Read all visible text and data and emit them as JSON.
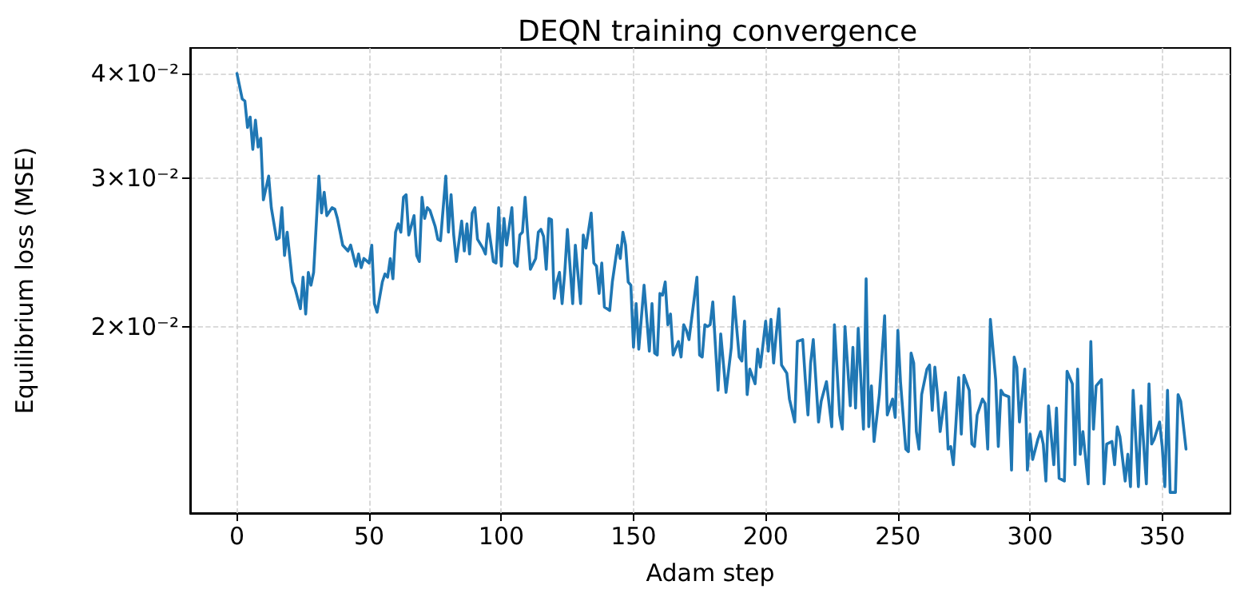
{
  "chart_data": {
    "type": "line",
    "title": "DEQN training convergence",
    "xlabel": "Adam step",
    "ylabel": "Equilibrium loss (MSE)",
    "log": "y",
    "grid": true,
    "marker": "none",
    "line_style": "solid",
    "xlim": [
      -17.7,
      375.8
    ],
    "xticks": [
      0,
      50,
      100,
      150,
      200,
      250,
      300,
      350
    ],
    "ylim": [
      0.012,
      0.0429
    ],
    "yticks": [
      {
        "value": 0.02,
        "label": "2×10⁻²"
      },
      {
        "value": 0.03,
        "label": "3×10⁻²"
      },
      {
        "value": 0.04,
        "label": "4×10⁻²"
      }
    ],
    "series": [
      {
        "color": "#1f77b4",
        "x": [
          0,
          2,
          3,
          4,
          5,
          6,
          7,
          8,
          9,
          10,
          12,
          13,
          15,
          16,
          17,
          18,
          19,
          21,
          22,
          24,
          25,
          26,
          27,
          28,
          29,
          31,
          32,
          33,
          34,
          36,
          37,
          38,
          40,
          42,
          43,
          45,
          46,
          47,
          48,
          50,
          51,
          52,
          53,
          55,
          56,
          57,
          58,
          59,
          60,
          61,
          62,
          63,
          64,
          65,
          67,
          68,
          69,
          70,
          71,
          72,
          73,
          75,
          76,
          77,
          79,
          80,
          81,
          82,
          83,
          85,
          86,
          87,
          88,
          89,
          90,
          91,
          93,
          94,
          95,
          97,
          98,
          99,
          100,
          101,
          102,
          104,
          105,
          106,
          107,
          108,
          109,
          110,
          111,
          113,
          114,
          115,
          116,
          117,
          118,
          119,
          120,
          121,
          122,
          123,
          124,
          125,
          127,
          128,
          130,
          131,
          132,
          134,
          135,
          136,
          137,
          138,
          139,
          140,
          141,
          142,
          144,
          145,
          146,
          147,
          148,
          149,
          150,
          151,
          152,
          154,
          155,
          156,
          157,
          158,
          159,
          160,
          161,
          162,
          163,
          164,
          165,
          167,
          168,
          169,
          170,
          171,
          174,
          175,
          176,
          177,
          178,
          179,
          180,
          182,
          183,
          185,
          187,
          188,
          190,
          191,
          192,
          193,
          194,
          196,
          197,
          198,
          200,
          201,
          202,
          203,
          204,
          205,
          206,
          208,
          209,
          211,
          212,
          214,
          215,
          216,
          217,
          218,
          220,
          221,
          223,
          225,
          226,
          228,
          229,
          230,
          232,
          233,
          234,
          235,
          237,
          238,
          239,
          240,
          241,
          243,
          245,
          246,
          248,
          249,
          250,
          251,
          253,
          254,
          255,
          256,
          257,
          258,
          259,
          261,
          262,
          263,
          264,
          265,
          266,
          268,
          269,
          270,
          271,
          272,
          273,
          274,
          275,
          277,
          278,
          279,
          280,
          282,
          283,
          284,
          285,
          287,
          288,
          289,
          290,
          292,
          293,
          294,
          295,
          296,
          298,
          299,
          300,
          301,
          303,
          304,
          305,
          306,
          307,
          309,
          310,
          311,
          313,
          314,
          316,
          317,
          318,
          319,
          320,
          322,
          323,
          324,
          325,
          327,
          328,
          329,
          331,
          332,
          333,
          334,
          336,
          337,
          338,
          339,
          341,
          342,
          344,
          345,
          346,
          347,
          349,
          350,
          351,
          352,
          353,
          355,
          356,
          357,
          359
        ],
        "values": [
          0.04,
          0.0373,
          0.0371,
          0.0345,
          0.0355,
          0.0325,
          0.0352,
          0.0327,
          0.0335,
          0.0283,
          0.0302,
          0.0277,
          0.0254,
          0.0255,
          0.0277,
          0.0243,
          0.0259,
          0.0226,
          0.0222,
          0.021,
          0.0229,
          0.0207,
          0.0232,
          0.0224,
          0.0232,
          0.0302,
          0.0273,
          0.0289,
          0.0271,
          0.0277,
          0.0276,
          0.0269,
          0.025,
          0.0246,
          0.025,
          0.0236,
          0.0244,
          0.0235,
          0.0241,
          0.0238,
          0.025,
          0.0213,
          0.0208,
          0.0226,
          0.0231,
          0.0229,
          0.0241,
          0.0228,
          0.0259,
          0.0265,
          0.0259,
          0.0285,
          0.0287,
          0.0257,
          0.0271,
          0.0243,
          0.0239,
          0.0285,
          0.0269,
          0.0277,
          0.0275,
          0.0263,
          0.0254,
          0.0253,
          0.0302,
          0.0259,
          0.0287,
          0.0257,
          0.0239,
          0.0267,
          0.0246,
          0.0265,
          0.0244,
          0.0273,
          0.0277,
          0.0254,
          0.0248,
          0.0244,
          0.0265,
          0.0239,
          0.0238,
          0.0277,
          0.0236,
          0.0269,
          0.025,
          0.0277,
          0.0238,
          0.0236,
          0.0257,
          0.0259,
          0.0285,
          0.0257,
          0.0234,
          0.0241,
          0.0259,
          0.0261,
          0.0256,
          0.0234,
          0.0269,
          0.0268,
          0.0216,
          0.0226,
          0.0232,
          0.0213,
          0.0232,
          0.0261,
          0.0213,
          0.025,
          0.0213,
          0.0257,
          0.0248,
          0.0273,
          0.0238,
          0.0236,
          0.0219,
          0.0238,
          0.0211,
          0.021,
          0.0209,
          0.0226,
          0.025,
          0.0241,
          0.0259,
          0.025,
          0.0226,
          0.0224,
          0.0189,
          0.0213,
          0.0188,
          0.0224,
          0.0205,
          0.0187,
          0.0213,
          0.0186,
          0.0185,
          0.0219,
          0.0218,
          0.0226,
          0.0201,
          0.0207,
          0.0185,
          0.0192,
          0.0184,
          0.0201,
          0.0198,
          0.0193,
          0.0229,
          0.0185,
          0.0184,
          0.0201,
          0.02,
          0.0201,
          0.0214,
          0.0168,
          0.0196,
          0.0167,
          0.0189,
          0.0217,
          0.0184,
          0.0182,
          0.0203,
          0.0166,
          0.0178,
          0.0171,
          0.0188,
          0.0179,
          0.0203,
          0.0187,
          0.0204,
          0.0181,
          0.0196,
          0.021,
          0.018,
          0.0176,
          0.0164,
          0.0154,
          0.0192,
          0.0193,
          0.0173,
          0.0157,
          0.0181,
          0.0193,
          0.0154,
          0.0163,
          0.0172,
          0.0152,
          0.0201,
          0.0157,
          0.0151,
          0.02,
          0.0161,
          0.0189,
          0.016,
          0.0199,
          0.0151,
          0.0228,
          0.0152,
          0.017,
          0.0146,
          0.0166,
          0.0206,
          0.0157,
          0.0164,
          0.0156,
          0.0198,
          0.0172,
          0.0143,
          0.0142,
          0.0186,
          0.0181,
          0.015,
          0.0143,
          0.0166,
          0.0178,
          0.018,
          0.0159,
          0.0179,
          0.0166,
          0.015,
          0.0167,
          0.0143,
          0.0144,
          0.0137,
          0.0154,
          0.0174,
          0.0149,
          0.0175,
          0.0168,
          0.0145,
          0.0144,
          0.0157,
          0.0164,
          0.0162,
          0.0143,
          0.0204,
          0.0173,
          0.0144,
          0.0168,
          0.0166,
          0.0165,
          0.0135,
          0.0184,
          0.0179,
          0.0154,
          0.0178,
          0.0135,
          0.0149,
          0.0139,
          0.0147,
          0.015,
          0.0145,
          0.0131,
          0.0161,
          0.0137,
          0.016,
          0.0132,
          0.0131,
          0.0177,
          0.0171,
          0.0137,
          0.0178,
          0.0141,
          0.015,
          0.013,
          0.0192,
          0.0151,
          0.017,
          0.0173,
          0.013,
          0.0145,
          0.0146,
          0.0137,
          0.0152,
          0.0148,
          0.0131,
          0.0141,
          0.0129,
          0.0168,
          0.0129,
          0.0161,
          0.013,
          0.0171,
          0.0145,
          0.0147,
          0.0154,
          0.0144,
          0.0129,
          0.0168,
          0.0127,
          0.0127,
          0.0166,
          0.0163,
          0.0143
        ]
      }
    ]
  }
}
